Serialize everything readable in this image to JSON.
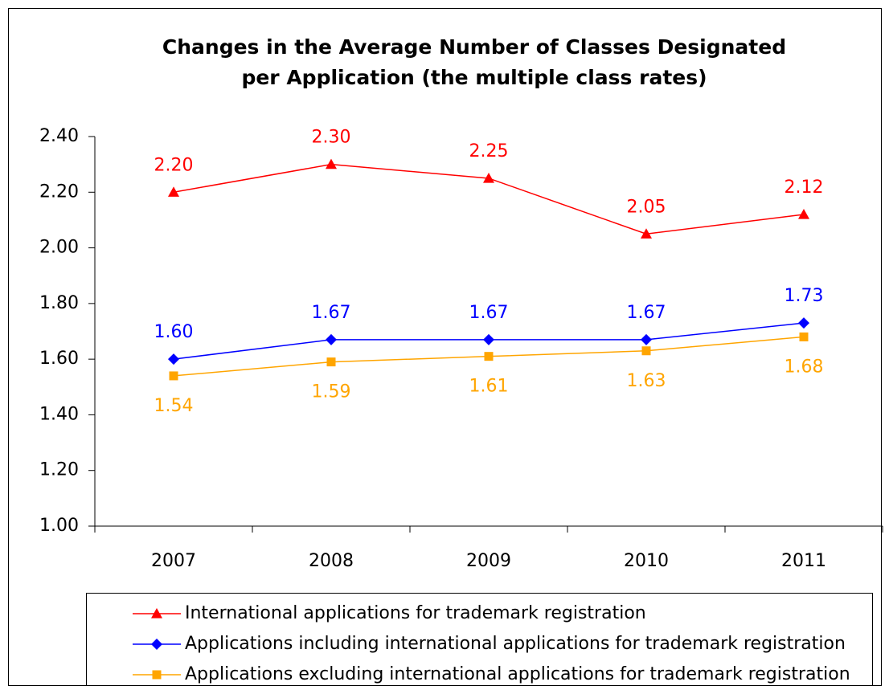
{
  "chart_data": {
    "type": "line",
    "title": [
      "Changes in the Average Number of Classes Designated",
      "per Application (the multiple class rates)"
    ],
    "categories": [
      "2007",
      "2008",
      "2009",
      "2010",
      "2011"
    ],
    "series": [
      {
        "name": "International applications for trademark registration",
        "color": "#ff0000",
        "marker": "triangle",
        "label_position": "above",
        "values": [
          2.2,
          2.3,
          2.25,
          2.05,
          2.12
        ],
        "value_labels": [
          "2.20",
          "2.30",
          "2.25",
          "2.05",
          "2.12"
        ]
      },
      {
        "name": "Applications including international applications for trademark registration",
        "color": "#0000ff",
        "marker": "diamond",
        "label_position": "above",
        "values": [
          1.6,
          1.67,
          1.67,
          1.67,
          1.73
        ],
        "value_labels": [
          "1.60",
          "1.67",
          "1.67",
          "1.67",
          "1.73"
        ]
      },
      {
        "name": "Applications excluding international applications for trademark registration",
        "color": "#ffa500",
        "marker": "square",
        "label_position": "below",
        "values": [
          1.54,
          1.59,
          1.61,
          1.63,
          1.68
        ],
        "value_labels": [
          "1.54",
          "1.59",
          "1.61",
          "1.63",
          "1.68"
        ]
      }
    ],
    "ylim": [
      1.0,
      2.4
    ],
    "yticks": [
      {
        "value": 1.0,
        "label": "1.00"
      },
      {
        "value": 1.2,
        "label": "1.20"
      },
      {
        "value": 1.4,
        "label": "1.40"
      },
      {
        "value": 1.6,
        "label": "1.60"
      },
      {
        "value": 1.8,
        "label": "1.80"
      },
      {
        "value": 2.0,
        "label": "2.00"
      },
      {
        "value": 2.2,
        "label": "2.20"
      },
      {
        "value": 2.4,
        "label": "2.40"
      }
    ],
    "grid": false,
    "legend": "bottom"
  }
}
